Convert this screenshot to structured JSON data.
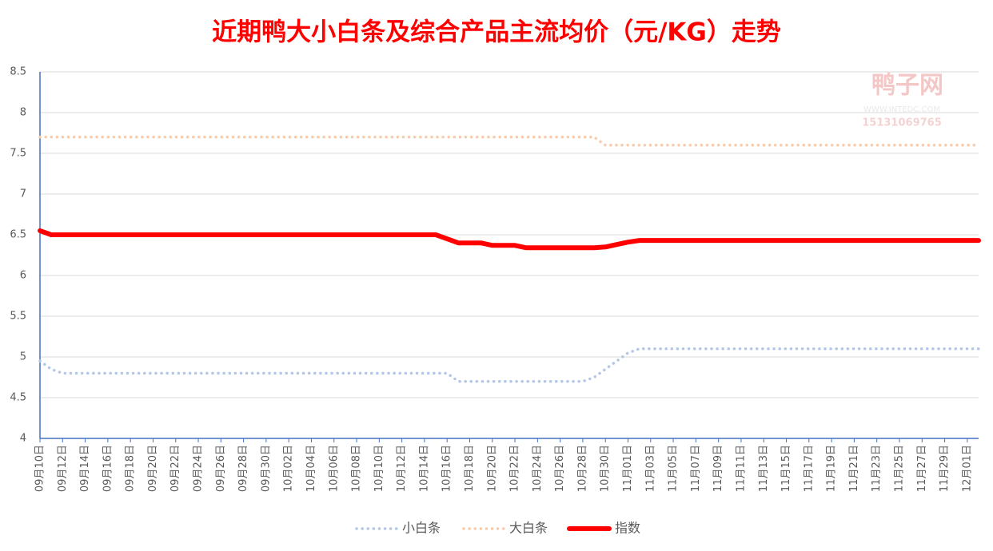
{
  "chart_data": {
    "type": "line",
    "title": "近期鸭大小白条及综合产品主流均价（元/KG）走势",
    "watermark": [
      "鸭子网",
      "WWW.INTEDC.COM",
      "15131069765"
    ],
    "categories": [
      "09月10日",
      null,
      "09月12日",
      null,
      "09月14日",
      null,
      "09月16日",
      null,
      "09月18日",
      null,
      "09月20日",
      null,
      "09月22日",
      null,
      "09月24日",
      null,
      "09月26日",
      null,
      "09月28日",
      null,
      "09月30日",
      null,
      "10月02日",
      null,
      "10月04日",
      null,
      "10月06日",
      null,
      "10月08日",
      null,
      "10月10日",
      null,
      "10月12日",
      null,
      "10月14日",
      null,
      "10月16日",
      null,
      "10月18日",
      null,
      "10月20日",
      null,
      "10月22日",
      null,
      "10月24日",
      null,
      "10月26日",
      null,
      "10月28日",
      null,
      "10月30日",
      null,
      "11月01日",
      null,
      "11月03日",
      null,
      "11月05日",
      null,
      "11月07日",
      null,
      "11月09日",
      null,
      "11月11日",
      null,
      "11月13日",
      null,
      "11月15日",
      null,
      "11月17日",
      null,
      "11月19日",
      null,
      "11月21日",
      null,
      "11月23日",
      null,
      "11月25日",
      null,
      "11月27日",
      null,
      "11月29日",
      null,
      "12月01日",
      null
    ],
    "series": [
      {
        "name": "小白条",
        "color": "#b4c7e7",
        "style": "dotted",
        "values": [
          4.95,
          4.85,
          4.8,
          4.8,
          4.8,
          4.8,
          4.8,
          4.8,
          4.8,
          4.8,
          4.8,
          4.8,
          4.8,
          4.8,
          4.8,
          4.8,
          4.8,
          4.8,
          4.8,
          4.8,
          4.8,
          4.8,
          4.8,
          4.8,
          4.8,
          4.8,
          4.8,
          4.8,
          4.8,
          4.8,
          4.8,
          4.8,
          4.8,
          4.8,
          4.8,
          4.8,
          4.8,
          4.7,
          4.7,
          4.7,
          4.7,
          4.7,
          4.7,
          4.7,
          4.7,
          4.7,
          4.7,
          4.7,
          4.7,
          4.75,
          4.85,
          4.95,
          5.05,
          5.1,
          5.1,
          5.1,
          5.1,
          5.1,
          5.1,
          5.1,
          5.1,
          5.1,
          5.1,
          5.1,
          5.1,
          5.1,
          5.1,
          5.1,
          5.1,
          5.1,
          5.1,
          5.1,
          5.1,
          5.1,
          5.1,
          5.1,
          5.1,
          5.1,
          5.1,
          5.1,
          5.1,
          5.1,
          5.1,
          5.1
        ]
      },
      {
        "name": "大白条",
        "color": "#f8cbad",
        "style": "dotted",
        "values": [
          7.7,
          7.7,
          7.7,
          7.7,
          7.7,
          7.7,
          7.7,
          7.7,
          7.7,
          7.7,
          7.7,
          7.7,
          7.7,
          7.7,
          7.7,
          7.7,
          7.7,
          7.7,
          7.7,
          7.7,
          7.7,
          7.7,
          7.7,
          7.7,
          7.7,
          7.7,
          7.7,
          7.7,
          7.7,
          7.7,
          7.7,
          7.7,
          7.7,
          7.7,
          7.7,
          7.7,
          7.7,
          7.7,
          7.7,
          7.7,
          7.7,
          7.7,
          7.7,
          7.7,
          7.7,
          7.7,
          7.7,
          7.7,
          7.7,
          7.7,
          7.6,
          7.6,
          7.6,
          7.6,
          7.6,
          7.6,
          7.6,
          7.6,
          7.6,
          7.6,
          7.6,
          7.6,
          7.6,
          7.6,
          7.6,
          7.6,
          7.6,
          7.6,
          7.6,
          7.6,
          7.6,
          7.6,
          7.6,
          7.6,
          7.6,
          7.6,
          7.6,
          7.6,
          7.6,
          7.6,
          7.6,
          7.6,
          7.6,
          7.6
        ]
      },
      {
        "name": "指数",
        "color": "#ff0000",
        "style": "solid",
        "values": [
          6.55,
          6.5,
          6.5,
          6.5,
          6.5,
          6.5,
          6.5,
          6.5,
          6.5,
          6.5,
          6.5,
          6.5,
          6.5,
          6.5,
          6.5,
          6.5,
          6.5,
          6.5,
          6.5,
          6.5,
          6.5,
          6.5,
          6.5,
          6.5,
          6.5,
          6.5,
          6.5,
          6.5,
          6.5,
          6.5,
          6.5,
          6.5,
          6.5,
          6.5,
          6.5,
          6.5,
          6.45,
          6.4,
          6.4,
          6.4,
          6.37,
          6.37,
          6.37,
          6.34,
          6.34,
          6.34,
          6.34,
          6.34,
          6.34,
          6.34,
          6.35,
          6.38,
          6.41,
          6.43,
          6.43,
          6.43,
          6.43,
          6.43,
          6.43,
          6.43,
          6.43,
          6.43,
          6.43,
          6.43,
          6.43,
          6.43,
          6.43,
          6.43,
          6.43,
          6.43,
          6.43,
          6.43,
          6.43,
          6.43,
          6.43,
          6.43,
          6.43,
          6.43,
          6.43,
          6.43,
          6.43,
          6.43,
          6.43,
          6.43
        ]
      }
    ],
    "ylim": [
      4,
      8.5
    ],
    "yticks": [
      4,
      4.5,
      5,
      5.5,
      6,
      6.5,
      7,
      7.5,
      8,
      8.5
    ],
    "grid": true,
    "legend": "bottom"
  }
}
